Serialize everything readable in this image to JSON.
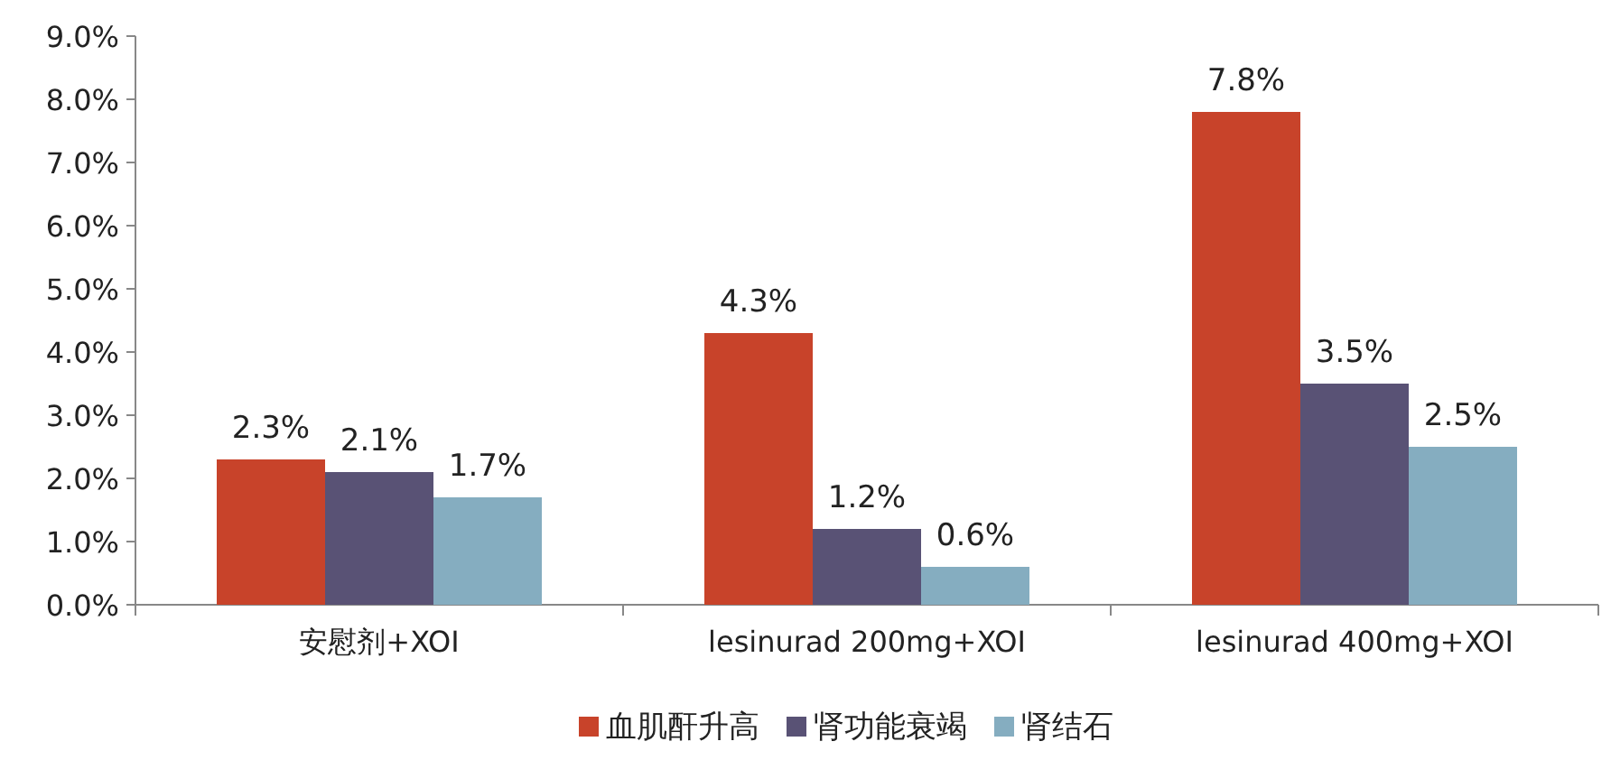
{
  "chart_data": {
    "type": "bar",
    "categories": [
      "安慰剂+XOI",
      "lesinurad 200mg+XOI",
      "lesinurad 400mg+XOI"
    ],
    "series": [
      {
        "name": "血肌酐升高",
        "color": "#c8432a",
        "values": [
          2.3,
          4.3,
          7.8
        ],
        "value_labels": [
          "2.3%",
          "4.3%",
          "7.8%"
        ]
      },
      {
        "name": "肾功能衰竭",
        "color": "#595275",
        "values": [
          2.1,
          1.2,
          3.5
        ],
        "value_labels": [
          "2.1%",
          "1.2%",
          "3.5%"
        ]
      },
      {
        "name": "肾结石",
        "color": "#85adc0",
        "values": [
          1.7,
          0.6,
          2.5
        ],
        "value_labels": [
          "1.7%",
          "0.6%",
          "2.5%"
        ]
      }
    ],
    "ylim": [
      0,
      9
    ],
    "yticks": [
      {
        "value": 0,
        "label": "0.0%"
      },
      {
        "value": 1,
        "label": "1.0%"
      },
      {
        "value": 2,
        "label": "2.0%"
      },
      {
        "value": 3,
        "label": "3.0%"
      },
      {
        "value": 4,
        "label": "4.0%"
      },
      {
        "value": 5,
        "label": "5.0%"
      },
      {
        "value": 6,
        "label": "6.0%"
      },
      {
        "value": 7,
        "label": "7.0%"
      },
      {
        "value": 8,
        "label": "8.0%"
      },
      {
        "value": 9,
        "label": "9.0%"
      }
    ],
    "legend": "bottom"
  }
}
